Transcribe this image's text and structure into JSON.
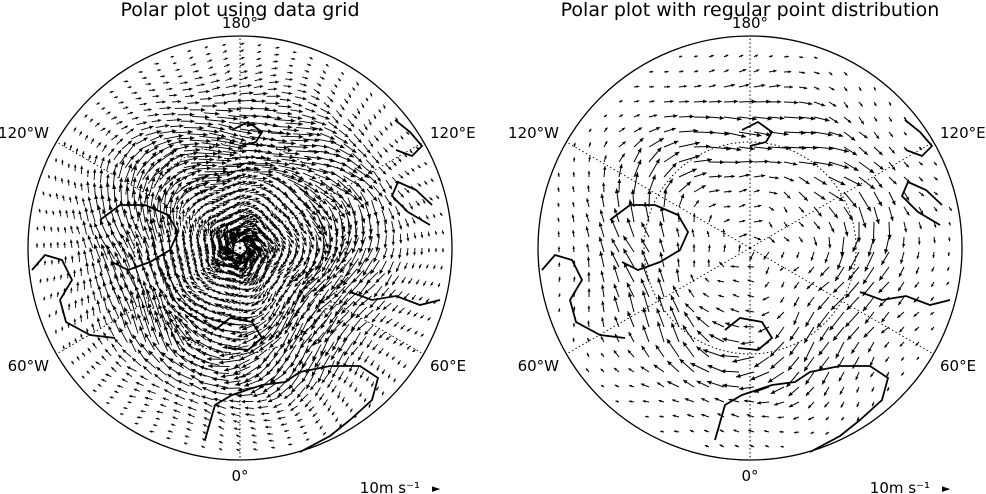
{
  "panels": [
    {
      "title": "Polar plot using data grid",
      "longitude_labels": {
        "top": "180°",
        "upper_left": "120°W",
        "upper_right": "120°E",
        "lower_left": "60°W",
        "lower_right": "60°E",
        "bottom": "0°"
      },
      "key_label": "10m s⁻¹",
      "key_symbol": "►",
      "vector_distribution": "data-grid"
    },
    {
      "title": "Polar plot with regular point distribution",
      "longitude_labels": {
        "top": "180°",
        "upper_left": "120°W",
        "upper_right": "120°E",
        "lower_left": "60°W",
        "lower_right": "60°E",
        "bottom": "0°"
      },
      "key_label": "10m s⁻¹",
      "key_symbol": "►",
      "vector_distribution": "regular"
    }
  ],
  "colors": {
    "ink": "#000000",
    "background": "#ffffff"
  }
}
